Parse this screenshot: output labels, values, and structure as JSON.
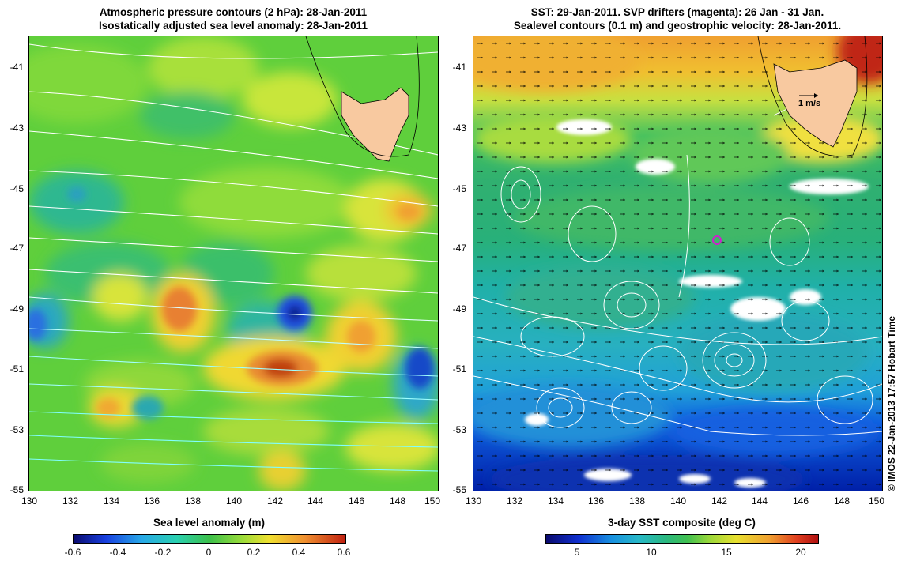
{
  "left_panel": {
    "title_line1": "Atmospheric pressure contours (2 hPa): 28-Jan-2011",
    "title_line2": "Isostatically adjusted sea level anomaly: 28-Jan-2011",
    "colorbar_label": "Sea level anomaly (m)",
    "colorbar_ticks": [
      "-0.6",
      "-0.4",
      "-0.2",
      "0",
      "0.2",
      "0.4",
      "0.6"
    ]
  },
  "right_panel": {
    "title_line1": "SST: 29-Jan-2011. SVP drifters (magenta): 26 Jan - 31 Jan.",
    "title_line2": "Sealevel contours (0.1 m) and geostrophic velocity: 28-Jan-2011.",
    "colorbar_label": "3-day SST composite (deg C)",
    "colorbar_ticks": [
      "5",
      "10",
      "15",
      "20"
    ],
    "velocity_scale_label": "1 m/s"
  },
  "axes": {
    "lat_ticks": [
      "-41",
      "-43",
      "-45",
      "-47",
      "-49",
      "-51",
      "-53",
      "-55"
    ],
    "lon_ticks": [
      "130",
      "132",
      "134",
      "136",
      "138",
      "140",
      "142",
      "144",
      "146",
      "148",
      "150"
    ]
  },
  "credit": "© IMOS 22-Jan-2013 17:57 Hobart Time",
  "map_data": {
    "region": "Southern Ocean south of Tasmania",
    "lon_range": [
      130,
      150
    ],
    "lat_range": [
      -55,
      -40
    ],
    "landmass": "Tasmania",
    "drifter_position": {
      "lon": 142,
      "lat": -46.7
    },
    "colors": {
      "land": "#f8c9a0",
      "drifter": "#cc22cc",
      "contours": "#ffffff"
    }
  }
}
